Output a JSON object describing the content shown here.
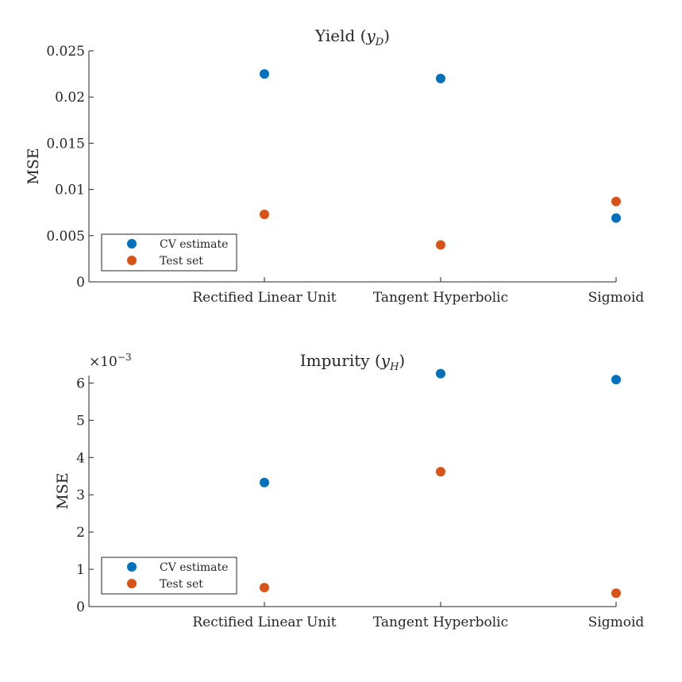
{
  "colors": {
    "cv_estimate": "#0072BD",
    "test_set": "#D95319",
    "axis": "#262626",
    "background": "#ffffff"
  },
  "chart_data": [
    {
      "type": "scatter",
      "title": "Yield (",
      "title_var": "y",
      "title_sub": "D",
      "title_close": ")",
      "ylabel": "MSE",
      "xlabel": "",
      "exponent_label": "",
      "categories": [
        "Rectified Linear Unit",
        "Tangent Hyperbolic",
        "Sigmoid"
      ],
      "ylim": [
        0,
        0.025
      ],
      "yticks": [
        0,
        0.005,
        0.01,
        0.015,
        0.02,
        0.025
      ],
      "ytick_labels": [
        "0",
        "0.005",
        "0.01",
        "0.015",
        "0.02",
        "0.025"
      ],
      "grid": false,
      "legend_position": "bottom-left",
      "series": [
        {
          "name": "CV estimate",
          "color_key": "cv_estimate",
          "values": [
            0.0225,
            0.022,
            0.0069
          ]
        },
        {
          "name": "Test set",
          "color_key": "test_set",
          "values": [
            0.0073,
            0.004,
            0.0087
          ]
        }
      ]
    },
    {
      "type": "scatter",
      "title": "Impurity (",
      "title_var": "y",
      "title_sub": "H",
      "title_close": ")",
      "ylabel": "MSE",
      "xlabel": "",
      "exponent_label": "×10",
      "exponent_power": "−3",
      "categories": [
        "Rectified Linear Unit",
        "Tangent Hyperbolic",
        "Sigmoid"
      ],
      "ylim": [
        0,
        0.0062
      ],
      "yticks": [
        0,
        0.001,
        0.002,
        0.003,
        0.004,
        0.005,
        0.006
      ],
      "ytick_labels": [
        "0",
        "1",
        "2",
        "3",
        "4",
        "5",
        "6"
      ],
      "grid": false,
      "legend_position": "bottom-left",
      "series": [
        {
          "name": "CV estimate",
          "color_key": "cv_estimate",
          "values": [
            0.00333,
            0.00625,
            0.00609
          ]
        },
        {
          "name": "Test set",
          "color_key": "test_set",
          "values": [
            0.00051,
            0.00362,
            0.00036
          ]
        }
      ]
    }
  ]
}
